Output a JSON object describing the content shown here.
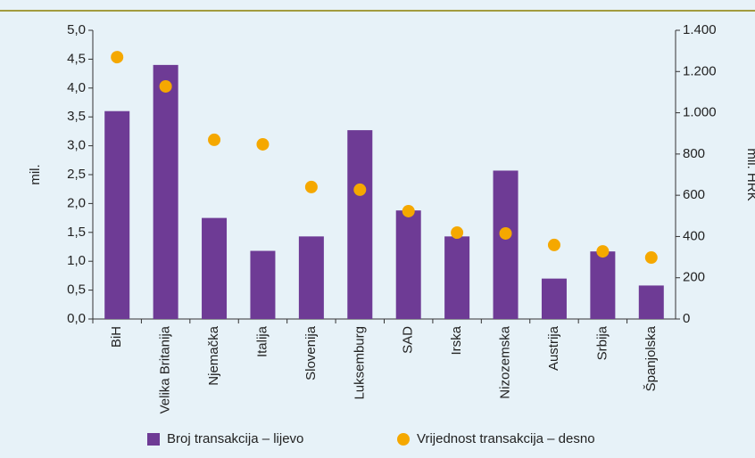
{
  "chart_data": {
    "type": "bar_dot",
    "categories": [
      "BiH",
      "Velika Britanija",
      "Njemačka",
      "Italija",
      "Slovenija",
      "Luksemburg",
      "SAD",
      "Irska",
      "Nizozemska",
      "Austrija",
      "Srbija",
      "Španjolska"
    ],
    "y_label": "mil.",
    "y2_label": "mil. HRK",
    "series": [
      {
        "name": "Broj transakcija – lijevo",
        "color": "#6e3b95",
        "values": [
          3.6,
          4.4,
          1.75,
          1.18,
          1.43,
          3.27,
          1.88,
          1.43,
          2.57,
          0.7,
          1.17,
          0.58
        ]
      },
      {
        "name": "Vrijednost transakcija – desno",
        "color": "#f5a800",
        "axis": "y2",
        "values": [
          1270,
          1128,
          869,
          847,
          640,
          627,
          523,
          419,
          415,
          359,
          328,
          298
        ]
      }
    ],
    "ylim": [
      0,
      5
    ],
    "yticks": [
      {
        "value": 0,
        "label": "0,0"
      },
      {
        "value": 0.5,
        "label": "0,5"
      },
      {
        "value": 1,
        "label": "1,0"
      },
      {
        "value": 1.5,
        "label": "1,5"
      },
      {
        "value": 2,
        "label": "2,0"
      },
      {
        "value": 2.5,
        "label": "2,5"
      },
      {
        "value": 3,
        "label": "3,0"
      },
      {
        "value": 3.5,
        "label": "3,5"
      },
      {
        "value": 4,
        "label": "4,0"
      },
      {
        "value": 4.5,
        "label": "4,5"
      },
      {
        "value": 5,
        "label": "5,0"
      }
    ],
    "y2lim": [
      0,
      1400
    ],
    "y2ticks": [
      0,
      200,
      400,
      600,
      800,
      {
        "value": 1000,
        "label": "1.000"
      },
      {
        "value": 1200,
        "label": "1.200"
      },
      {
        "value": 1400,
        "label": "1.400"
      }
    ]
  }
}
